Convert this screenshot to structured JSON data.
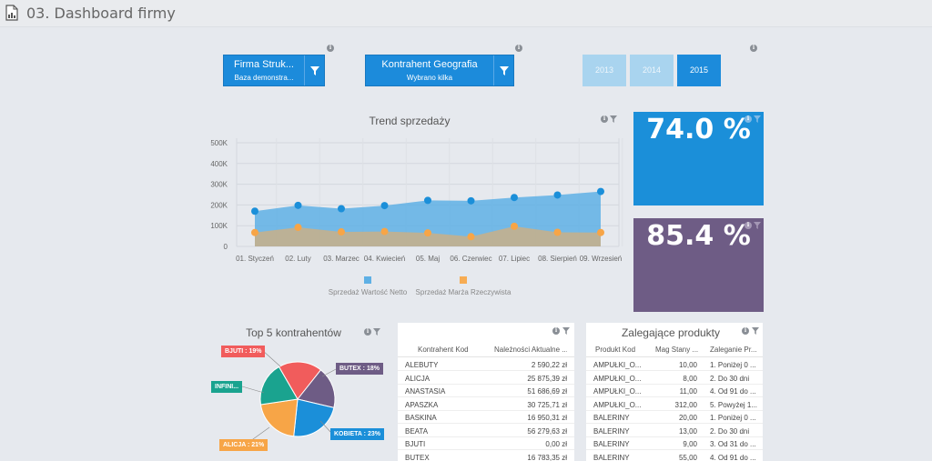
{
  "page": {
    "title": "03. Dashboard firmy",
    "icon": "document-chart-icon"
  },
  "filters": [
    {
      "label": "Firma Struk...",
      "sub": "Baza demonstra..."
    },
    {
      "label": "Kontrahent Geografia",
      "sub": "Wybrano kilka"
    }
  ],
  "years": [
    {
      "label": "2013",
      "selected": false
    },
    {
      "label": "2014",
      "selected": false
    },
    {
      "label": "2015",
      "selected": true
    }
  ],
  "colors": {
    "primary": "#1c8bdb",
    "year_inactive": "#a9d4ef",
    "kpi_blue": "#1b8fd9",
    "kpi_purple": "#6e5c85",
    "series_blue": "#5eb0e5",
    "series_orange": "#f7ac53"
  },
  "kpis": [
    {
      "value": "74.0 %"
    },
    {
      "value": "85.4 %"
    }
  ],
  "trend": {
    "title": "Trend sprzedaży"
  },
  "chart_data": [
    {
      "type": "area",
      "title": "Trend sprzedaży",
      "categories": [
        "01. Styczeń",
        "02. Luty",
        "03. Marzec",
        "04. Kwiecień",
        "05. Maj",
        "06. Czerwiec",
        "07. Lipiec",
        "08. Sierpień",
        "09. Wrzesień"
      ],
      "y_ticks": [
        "0",
        "100K",
        "200K",
        "300K",
        "400K",
        "500K"
      ],
      "ylim": [
        0,
        500000
      ],
      "grid": true,
      "legend_position": "bottom",
      "series": [
        {
          "name": "Sprzedaż Wartość Netto",
          "color": "#5eb0e5",
          "values": [
            170000,
            198000,
            182000,
            197000,
            222000,
            220000,
            236000,
            248000,
            265000
          ]
        },
        {
          "name": "Sprzedaż Marża Rzeczywista",
          "color": "#f7ac53",
          "values": [
            67000,
            92000,
            70000,
            72000,
            65000,
            47000,
            97000,
            68000,
            67000
          ]
        }
      ]
    },
    {
      "type": "pie",
      "title": "Top 5 kontrahentów",
      "slices": [
        {
          "label": "BJUTI : 19%",
          "value": 19,
          "color": "#f15c5c"
        },
        {
          "label": "BUTEX : 18%",
          "value": 18,
          "color": "#6e5c85"
        },
        {
          "label": "KOBIETA : 23%",
          "value": 23,
          "color": "#1b8fd9"
        },
        {
          "label": "ALICJA : 21%",
          "value": 21,
          "color": "#f7a547"
        },
        {
          "label": "INFINI...",
          "value": 19,
          "color": "#1aa38f"
        }
      ]
    }
  ],
  "table1": {
    "headers": [
      "Kontrahent Kod",
      "Należności Aktualne ..."
    ],
    "rows": [
      [
        "ALEBUTY",
        "2 590,22 zł"
      ],
      [
        "ALICJA",
        "25 875,39 zł"
      ],
      [
        "ANASTASIA",
        "51 686,69 zł"
      ],
      [
        "APASZKA",
        "30 725,71 zł"
      ],
      [
        "BASKINA",
        "16 950,31 zł"
      ],
      [
        "BEATA",
        "56 279,63 zł"
      ],
      [
        "BJUTI",
        "0,00 zł"
      ],
      [
        "BUTEX",
        "16 783,35 zł"
      ]
    ]
  },
  "table2": {
    "title": "Zalegające produkty",
    "headers": [
      "Produkt Kod",
      "Mag Stany ...",
      "Zaleganie Pr..."
    ],
    "rows": [
      [
        "AMPUŁKI_O...",
        "10,00",
        "1. Poniżej 0 ..."
      ],
      [
        "AMPUŁKI_O...",
        "8,00",
        "2. Do 30 dni"
      ],
      [
        "AMPUŁKI_O...",
        "11,00",
        "4. Od 91 do ..."
      ],
      [
        "AMPUŁKI_O...",
        "312,00",
        "5. Powyżej 1..."
      ],
      [
        "BALERINY",
        "20,00",
        "1. Poniżej 0 ..."
      ],
      [
        "BALERINY",
        "13,00",
        "2. Do 30 dni"
      ],
      [
        "BALERINY",
        "9,00",
        "3. Od 31 do ..."
      ],
      [
        "BALERINY",
        "55,00",
        "4. Od 91 do ..."
      ]
    ]
  }
}
